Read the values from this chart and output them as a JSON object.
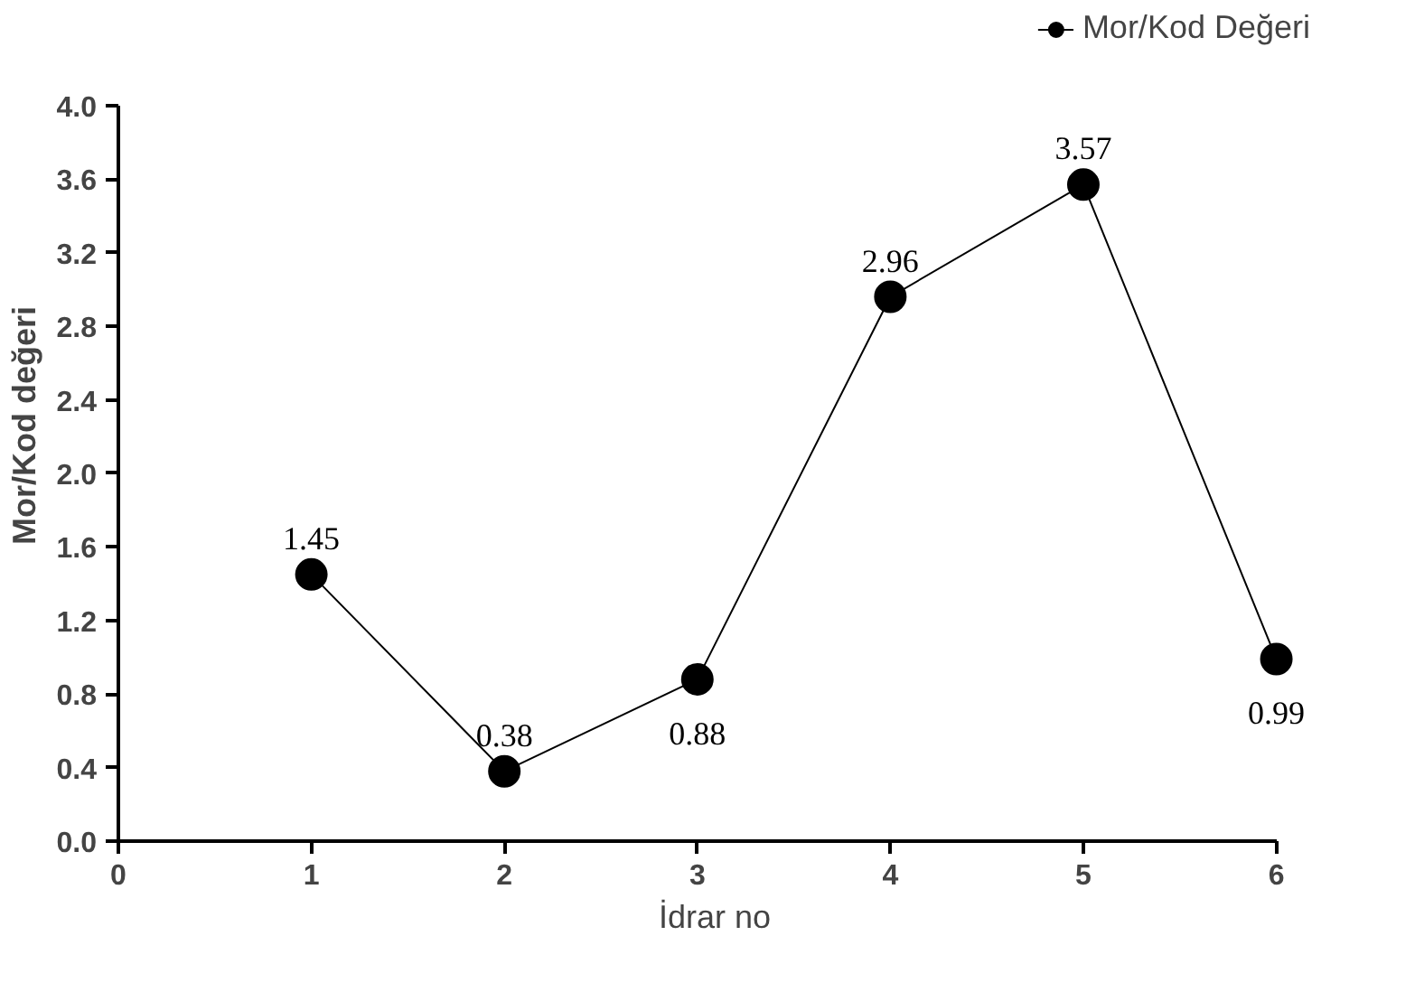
{
  "chart_data": {
    "type": "line",
    "xlabel": "İdrar no",
    "ylabel": "Mor/Kod değeri",
    "x": [
      1,
      2,
      3,
      4,
      5,
      6
    ],
    "series": [
      {
        "name": "Mor/Kod Değeri",
        "color": "#000000",
        "values": [
          1.45,
          0.38,
          0.88,
          2.96,
          3.57,
          0.99
        ]
      }
    ],
    "xlim": [
      0,
      6
    ],
    "xticks": [
      0,
      1,
      2,
      3,
      4,
      5,
      6
    ],
    "ylim": [
      0,
      4
    ],
    "yticks": [
      {
        "value": 0,
        "label": "0.0"
      },
      {
        "value": 0.4,
        "label": "0.4"
      },
      {
        "value": 0.8,
        "label": "0.8"
      },
      {
        "value": 1.2,
        "label": "1.2"
      },
      {
        "value": 1.6,
        "label": "1.6"
      },
      {
        "value": 2.0,
        "label": "2.0"
      },
      {
        "value": 2.4,
        "label": "2.4"
      },
      {
        "value": 2.8,
        "label": "2.8"
      },
      {
        "value": 3.2,
        "label": "3.2"
      },
      {
        "value": 3.6,
        "label": "3.6"
      },
      {
        "value": 4.0,
        "label": "4.0"
      }
    ],
    "data_labels": true,
    "marker": "circle",
    "line_style": "solid",
    "grid": false,
    "legend": "top right"
  }
}
